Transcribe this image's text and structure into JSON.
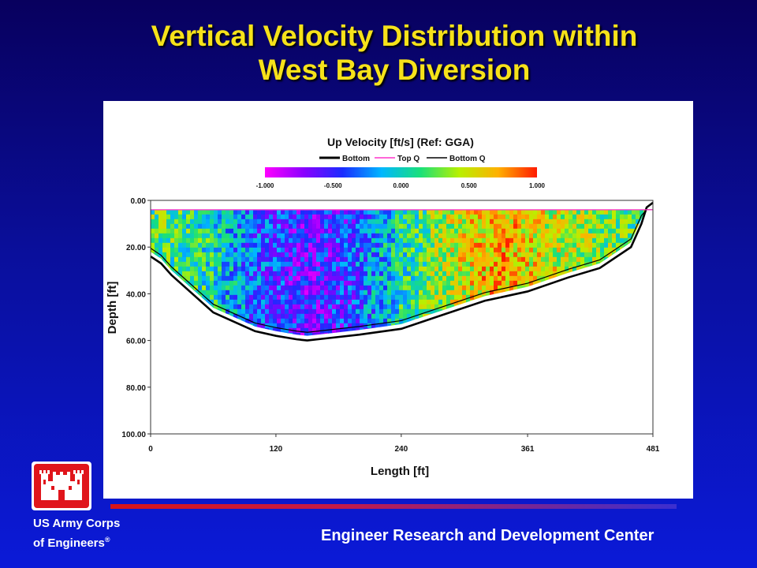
{
  "slide": {
    "title_line1": "Vertical Velocity Distribution within",
    "title_line2": "West Bay Diversion"
  },
  "colors": {
    "title": "#f6e21a",
    "background_top": "#08005e",
    "background_bottom": "#0b1ad8",
    "logo_red": "#e0151b",
    "divider_red": "#d81418"
  },
  "chart_data": {
    "type": "heatmap",
    "title": "Up Velocity [ft/s] (Ref: GGA)",
    "legend": [
      {
        "label": "Bottom",
        "color": "#000000",
        "style": "thick"
      },
      {
        "label": "Top Q",
        "color": "#ff33cc",
        "style": "thin"
      },
      {
        "label": "Bottom Q",
        "color": "#000000",
        "style": "thin"
      }
    ],
    "colorbar": {
      "ticks": [
        "-1.000",
        "-0.500",
        "0.000",
        "0.500",
        "1.000"
      ],
      "min": -1.0,
      "max": 1.0,
      "colormap": [
        "#ff00ff",
        "#8a00ff",
        "#1a2cff",
        "#00b7ff",
        "#19e07a",
        "#b8f000",
        "#ffb000",
        "#ff1a00"
      ]
    },
    "xlabel": "Length [ft]",
    "ylabel": "Depth [ft]",
    "x_ticks": [
      "0",
      "120",
      "240",
      "361",
      "481"
    ],
    "x_tick_values": [
      0,
      120,
      240,
      361,
      481
    ],
    "y_ticks": [
      "0.00",
      "20.00",
      "40.00",
      "60.00",
      "80.00",
      "100.00"
    ],
    "y_tick_values": [
      0,
      20,
      40,
      60,
      80,
      100
    ],
    "xlim": [
      0,
      481
    ],
    "ylim": [
      100,
      0
    ],
    "top_q_depth": 4,
    "bottom_profile": {
      "x": [
        0,
        10,
        20,
        30,
        45,
        60,
        80,
        100,
        120,
        140,
        150,
        170,
        200,
        240,
        280,
        320,
        361,
        400,
        430,
        460,
        470,
        475,
        481
      ],
      "depth": [
        24,
        27,
        32,
        36,
        42,
        48,
        52,
        56,
        58,
        59.5,
        60,
        59,
        57.5,
        55,
        49,
        43,
        39,
        33,
        29,
        20,
        10,
        3,
        1
      ]
    },
    "velocity_pattern": {
      "x": [
        0,
        60,
        100,
        150,
        190,
        240,
        290,
        330,
        380,
        430,
        481
      ],
      "value": [
        0.25,
        0.05,
        -0.35,
        -0.6,
        -0.45,
        0.05,
        0.45,
        0.7,
        0.5,
        0.3,
        0.2
      ]
    }
  },
  "footer": {
    "org_line1": "US Army Corps",
    "org_line2": "of Engineers",
    "registered_mark": "®",
    "center_name": "Engineer Research and Development Center"
  }
}
